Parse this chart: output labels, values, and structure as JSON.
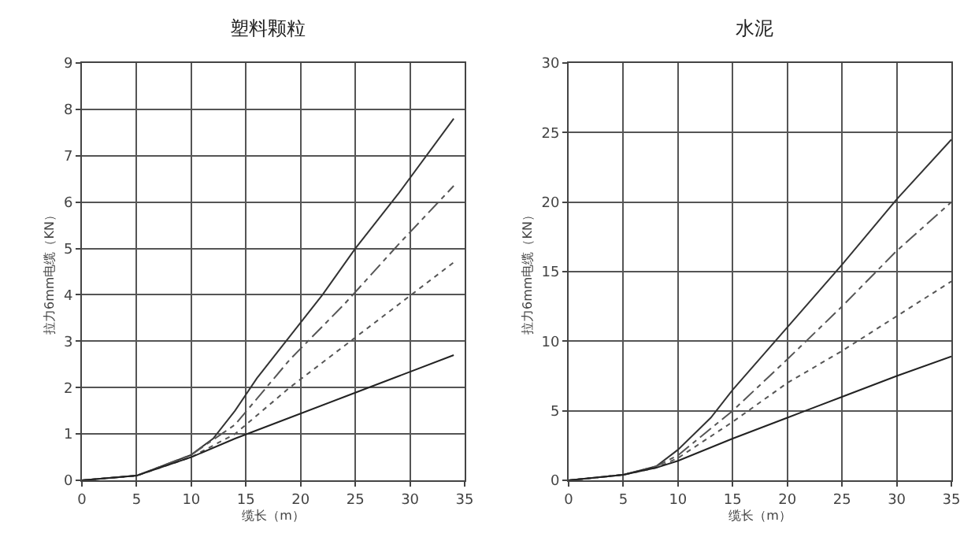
{
  "chart_data": [
    {
      "type": "line",
      "title": "塑料颗粒",
      "xlabel": "缆长（m）",
      "ylabel": "拉力6mm电缆（KN）",
      "xlim": [
        0,
        35
      ],
      "xticks": [
        0,
        5,
        10,
        15,
        20,
        25,
        30,
        35
      ],
      "ylim": [
        0,
        9
      ],
      "yticks": [
        0,
        1,
        2,
        3,
        4,
        5,
        6,
        7,
        8,
        9
      ],
      "grid": true,
      "marker": "none",
      "series": [
        {
          "color": "#333333",
          "line_style": "solid",
          "x": [
            0,
            5,
            10,
            12,
            14,
            16,
            19,
            22,
            25,
            29,
            34
          ],
          "values": [
            0,
            0.1,
            0.55,
            0.9,
            1.5,
            2.2,
            3.1,
            4,
            5,
            6.2,
            7.8
          ]
        },
        {
          "color": "#555555",
          "line_style": "dashed",
          "x": [
            0,
            5,
            10,
            14,
            19,
            24,
            29,
            34
          ],
          "values": [
            0,
            0.1,
            0.55,
            1.2,
            2.6,
            3.8,
            5.1,
            6.35
          ]
        },
        {
          "color": "#555555",
          "line_style": "dotted",
          "x": [
            0,
            5,
            10,
            14,
            19,
            24,
            29,
            34
          ],
          "values": [
            0,
            0.1,
            0.5,
            1.0,
            2.0,
            2.9,
            3.8,
            4.7
          ]
        },
        {
          "color": "#222222",
          "line_style": "solid",
          "x": [
            0,
            5,
            10,
            14,
            19,
            24,
            29,
            34
          ],
          "values": [
            0,
            0.1,
            0.5,
            0.9,
            1.35,
            1.8,
            2.25,
            2.7
          ]
        }
      ]
    },
    {
      "type": "line",
      "title": "水泥",
      "xlabel": "缆长（m）",
      "ylabel": "拉力6mm电缆（KN）",
      "xlim": [
        0,
        35
      ],
      "xticks": [
        0,
        5,
        10,
        15,
        20,
        25,
        30,
        35
      ],
      "ylim": [
        0,
        30
      ],
      "yticks": [
        0,
        5,
        10,
        15,
        20,
        25,
        30
      ],
      "grid": true,
      "marker": "none",
      "series": [
        {
          "color": "#333333",
          "line_style": "solid",
          "x": [
            0,
            5,
            8,
            10,
            13,
            15,
            20,
            25,
            30,
            35
          ],
          "values": [
            0,
            0.4,
            1,
            2.2,
            4.5,
            6.5,
            11,
            15.5,
            20.2,
            24.5
          ]
        },
        {
          "color": "#555555",
          "line_style": "dashed",
          "x": [
            0,
            5,
            8,
            10,
            15,
            20,
            25,
            30,
            35
          ],
          "values": [
            0,
            0.4,
            1,
            1.8,
            5,
            8.7,
            12.5,
            16.5,
            20
          ]
        },
        {
          "color": "#555555",
          "line_style": "dotted",
          "x": [
            0,
            5,
            8,
            10,
            15,
            20,
            25,
            30,
            35
          ],
          "values": [
            0,
            0.4,
            0.9,
            1.6,
            4.2,
            7,
            9.3,
            11.8,
            14.3
          ]
        },
        {
          "color": "#222222",
          "line_style": "solid",
          "x": [
            0,
            5,
            8,
            10,
            15,
            20,
            25,
            30,
            35
          ],
          "values": [
            0,
            0.4,
            0.9,
            1.4,
            3.0,
            4.5,
            6.0,
            7.5,
            8.9
          ]
        }
      ]
    }
  ]
}
